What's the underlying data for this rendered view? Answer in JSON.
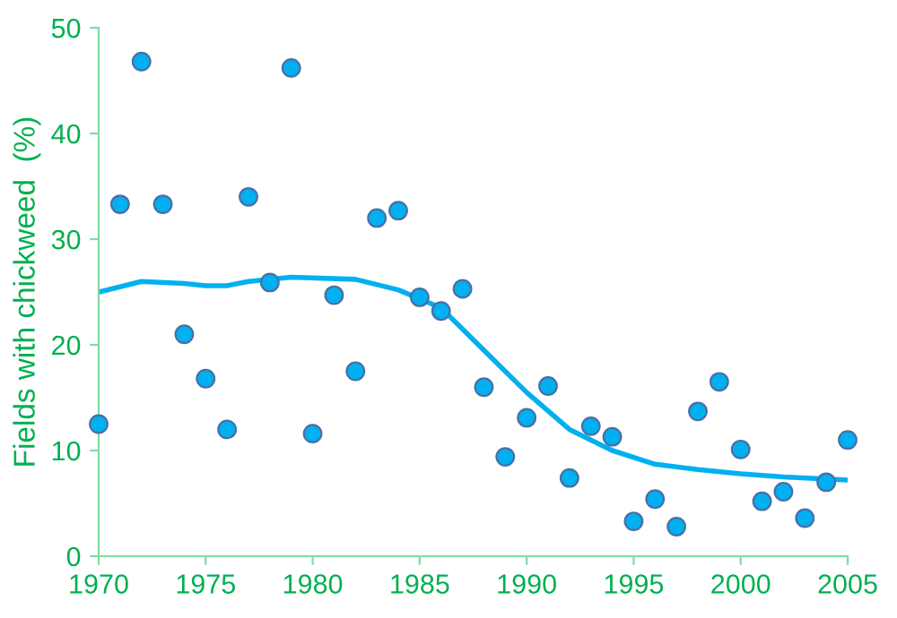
{
  "chart_data": {
    "type": "scatter",
    "ylabel": "Fields with chickweed  (%)",
    "xlim": [
      1970,
      2005
    ],
    "xticks": [
      1970,
      1975,
      1980,
      1985,
      1990,
      1995,
      2000,
      2005
    ],
    "ylim": [
      0,
      50
    ],
    "yticks": [
      0,
      10,
      20,
      30,
      40,
      50
    ],
    "grid": false,
    "marker": "circle",
    "series": [
      {
        "color": "#00b0f0",
        "x": [
          1970,
          1971,
          1972,
          1973,
          1974,
          1975,
          1976,
          1977,
          1978,
          1979,
          1980,
          1981,
          1982,
          1983,
          1984,
          1985,
          1986,
          1987,
          1988,
          1989,
          1990,
          1991,
          1992,
          1993,
          1994,
          1995,
          1996,
          1997,
          1998,
          1999,
          2000,
          2001,
          2002,
          2003,
          2004,
          2005
        ],
        "values": [
          12.5,
          33.3,
          46.8,
          33.3,
          21,
          16.8,
          12,
          34,
          25.9,
          46.2,
          11.6,
          24.7,
          17.5,
          32,
          32.7,
          24.5,
          23.2,
          25.3,
          16,
          9.4,
          13.1,
          16.1,
          7.4,
          12.3,
          11.3,
          3.3,
          5.4,
          2.8,
          13.7,
          16.5,
          10.1,
          5.2,
          6.1,
          3.6,
          7,
          11
        ]
      },
      {
        "type": "line",
        "color": "#00b0f0",
        "marker": "none",
        "x": [
          1970,
          1972,
          1974,
          1975,
          1976,
          1977,
          1979,
          1982,
          1984,
          1986,
          1988,
          1990,
          1992,
          1994,
          1996,
          1998,
          2000,
          2002,
          2005
        ],
        "values": [
          25,
          26,
          25.8,
          25.6,
          25.6,
          26,
          26.4,
          26.2,
          25.2,
          23.5,
          19.5,
          15.5,
          12,
          10,
          8.7,
          8.2,
          7.8,
          7.5,
          7.2
        ]
      }
    ]
  }
}
